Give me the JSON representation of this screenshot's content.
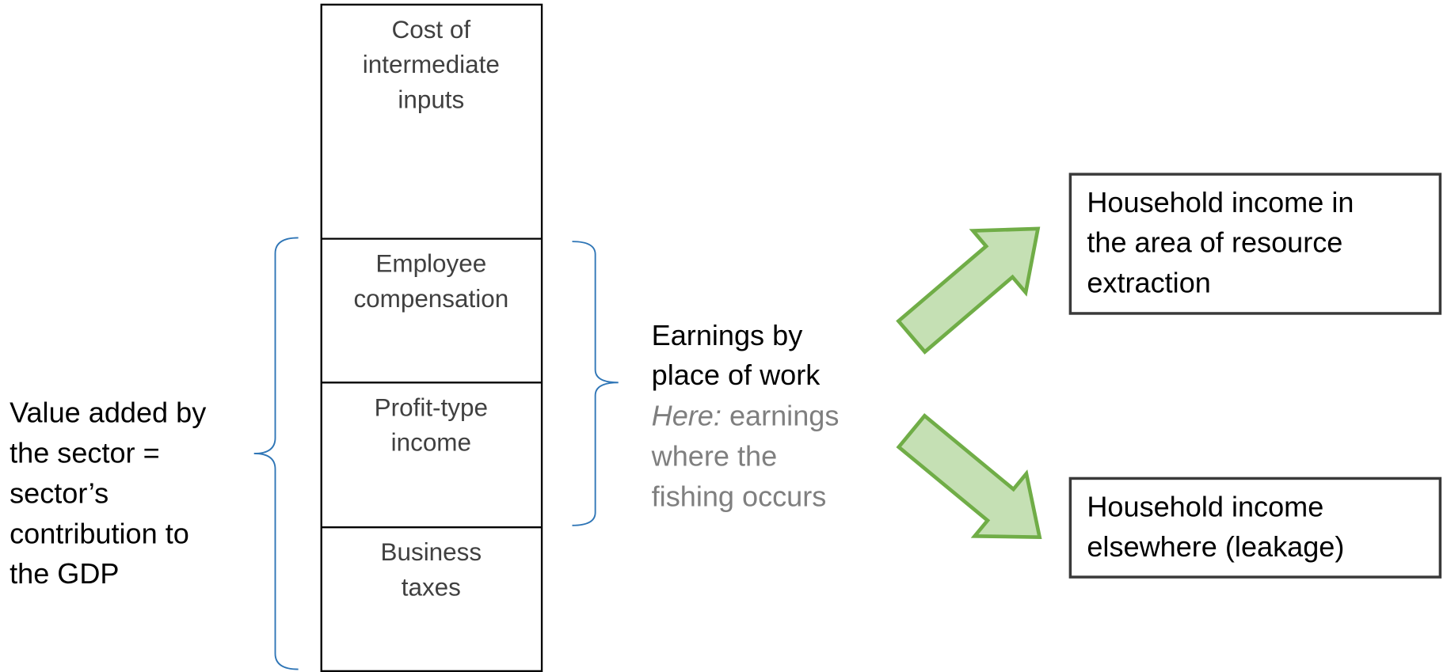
{
  "stack": {
    "segments": [
      {
        "lines": [
          "Cost of",
          "intermediate",
          "inputs"
        ]
      },
      {
        "lines": [
          "Employee",
          "compensation"
        ]
      },
      {
        "lines": [
          "Profit-type",
          "income"
        ]
      },
      {
        "lines": [
          "Business",
          "taxes"
        ]
      }
    ]
  },
  "value_added": {
    "lines": [
      "Value added by",
      "the sector =",
      "sector’s",
      "contribution to",
      "the GDP"
    ]
  },
  "earnings": {
    "title_lines": [
      "Earnings by",
      "place of work"
    ],
    "note_label": "Here:",
    "note_lines": [
      " earnings",
      "where the",
      "fishing occurs"
    ]
  },
  "outcomes": [
    {
      "lines": [
        "Household income in",
        "the area of resource",
        "extraction"
      ]
    },
    {
      "lines": [
        "Household income",
        "elsewhere (leakage)"
      ]
    }
  ]
}
